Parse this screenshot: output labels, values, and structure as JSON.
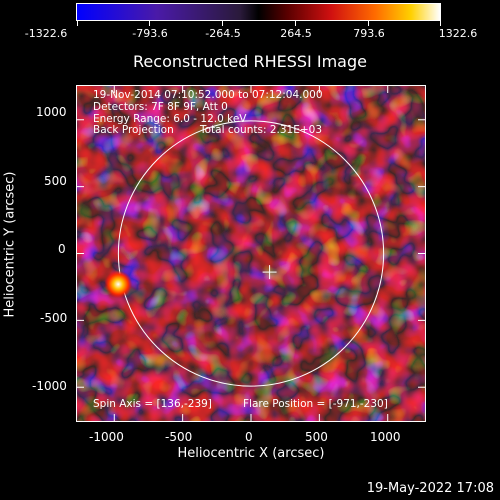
{
  "colorbar": {
    "ticks": [
      "-1322.6",
      "-793.6",
      "-264.5",
      "264.5",
      "793.6",
      "1322.6"
    ],
    "range": [
      -1322.6,
      1322.6
    ]
  },
  "chart_data": {
    "type": "heatmap",
    "title": "Reconstructed RHESSI Image",
    "xlabel": "Heliocentric X (arcsec)",
    "ylabel": "Heliocentric Y (arcsec)",
    "xlim": [
      -1280,
      1280
    ],
    "ylim": [
      -1260,
      1260
    ],
    "x_ticks": [
      "-1000",
      "-500",
      "0",
      "500",
      "1000"
    ],
    "y_ticks": [
      "1000",
      "500",
      "0",
      "-500",
      "-1000"
    ],
    "x_tick_values": [
      -1000,
      -500,
      0,
      500,
      1000
    ],
    "y_tick_values": [
      1000,
      500,
      0,
      -500,
      -1000
    ],
    "annotations": {
      "line1": "19-Nov-2014 07:10:52.000 to 07:12:04.000",
      "line2": "Detectors: 7F 8F 9F, Att 0",
      "line3": "Energy Range: 6.0 - 12.0 keV",
      "line4": "Back Projection",
      "line5": "Total counts: 2.31E+03",
      "bottom_left": "Spin Axis = [136,-239]",
      "bottom_right": "Flare Position = [-971,-230]"
    },
    "solar_limb_radius_arcsec": 970,
    "spin_axis": [
      136,
      -239
    ],
    "flare_position": [
      -971,
      -230
    ]
  },
  "footer": {
    "timestamp": "19-May-2022 17:08"
  }
}
